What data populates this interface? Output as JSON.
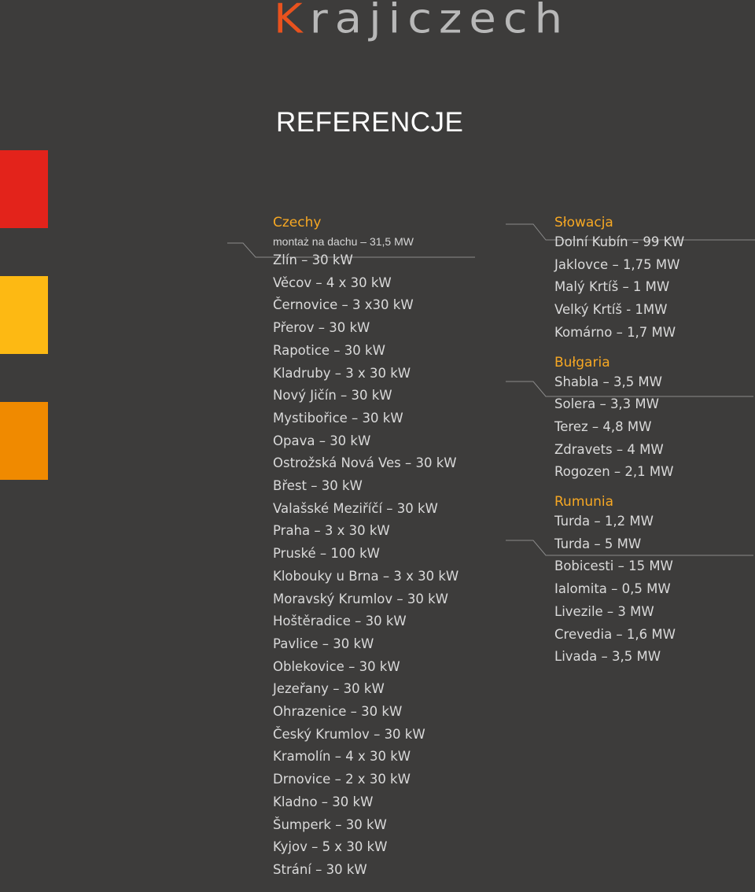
{
  "logo": {
    "first_letter": "K",
    "rest": "rajiczech"
  },
  "page_title": "REFERENCJE",
  "left": {
    "heading": "Czechy",
    "subheading": "montaż na dachu – 31,5 MW",
    "items": [
      "Zlín – 30 kW",
      "Věcov – 4 x 30 kW",
      "Černovice – 3 x30 kW",
      "Přerov – 30 kW",
      "Rapotice – 30 kW",
      "Kladruby – 3 x 30 kW",
      "Nový Jičín – 30 kW",
      "Mystibořice – 30 kW",
      "Opava – 30 kW",
      "Ostrožská Nová Ves – 30 kW",
      "Břest – 30 kW",
      "Valašské Meziříčí – 30 kW",
      "Praha – 3 x 30 kW",
      "Pruské – 100 kW",
      "Klobouky u Brna – 3 x 30 kW",
      "Moravský Krumlov – 30 kW",
      "Hoštěradice – 30 kW",
      "Pavlice – 30 kW",
      "Oblekovice – 30 kW",
      "Jezeřany – 30 kW",
      "Ohrazenice – 30 kW",
      "Český Krumlov – 30 kW",
      "Kramolín – 4 x 30 kW",
      "Drnovice – 2 x 30 kW",
      "Kladno – 30 kW",
      "Šumperk – 30 kW",
      "Kyjov – 5 x 30 kW",
      "Strání – 30 kW"
    ]
  },
  "right": {
    "sections": [
      {
        "heading": "Słowacja",
        "items": [
          "Dolní Kubín – 99 KW",
          "Jaklovce – 1,75 MW",
          "Malý Krtíš – 1 MW",
          "Velký Krtíš - 1MW",
          "Komárno – 1,7 MW"
        ]
      },
      {
        "heading": "Bułgaria",
        "items": [
          "Shabla – 3,5 MW",
          "Solera – 3,3 MW",
          "Terez – 4,8 MW",
          "Zdravets – 4 MW",
          "Rogozen – 2,1 MW"
        ]
      },
      {
        "heading": "Rumunia",
        "items": [
          "Turda – 1,2 MW",
          "Turda – 5 MW",
          "Bobicesti – 15 MW",
          "Ialomita – 0,5 MW",
          "Livezile – 3 MW",
          "Crevedia – 1,6 MW",
          "Livada – 3,5 MW"
        ]
      }
    ]
  },
  "colors": {
    "background": "#3d3c3b",
    "accent_heading": "#f7a823",
    "bar_red": "#e3231b",
    "bar_yellow": "#fdb913",
    "bar_orange": "#f08a00",
    "logo_accent": "#e8521e"
  }
}
